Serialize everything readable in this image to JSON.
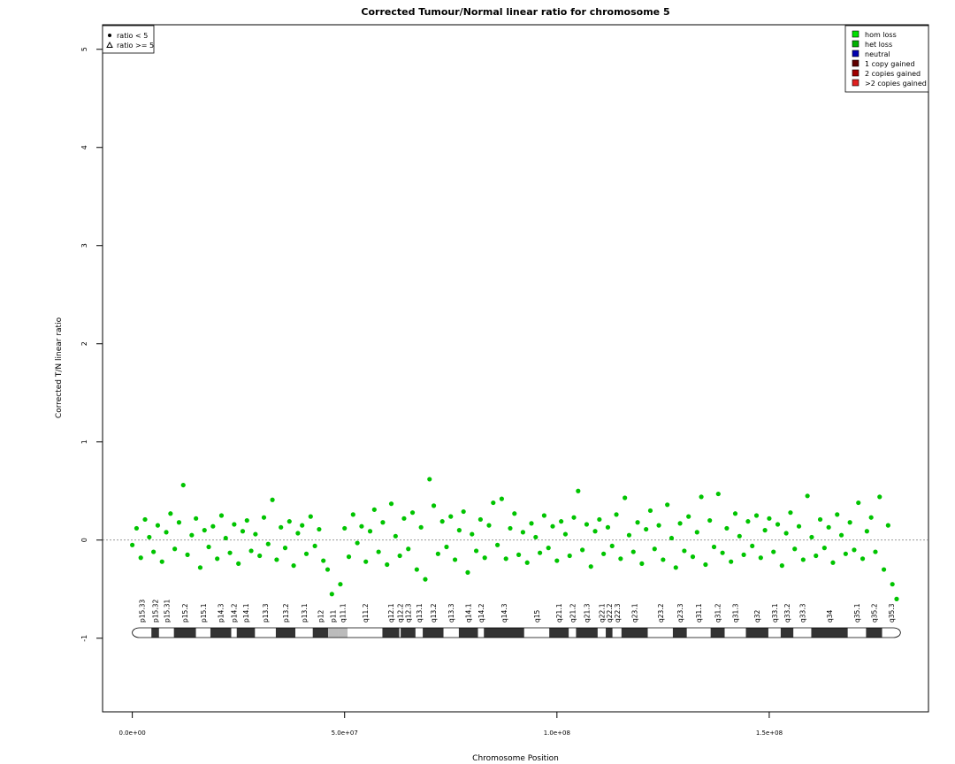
{
  "chart_data": {
    "type": "scatter",
    "title": "Corrected Tumour/Normal linear ratio for chromosome  5",
    "xlabel": "Chromosome Position",
    "ylabel": "Corrected T/N linear ratio",
    "color": "#00c400",
    "xlim": [
      -7000000,
      187500000
    ],
    "xticks": [
      {
        "value": 0,
        "label": "0.0e+00"
      },
      {
        "value": 50000000,
        "label": "5.0e+07"
      },
      {
        "value": 100000000,
        "label": "1.0e+08"
      },
      {
        "value": 150000000,
        "label": "1.5e+08"
      }
    ],
    "ylim": [
      -1.75,
      5.25
    ],
    "yticks": [
      -1,
      0,
      1,
      2,
      3,
      4,
      5
    ],
    "reference_line": 0,
    "shape_legend": [
      {
        "name": "ratio < 5",
        "shape": "circle"
      },
      {
        "name": "ratio >= 5",
        "shape": "triangle"
      }
    ],
    "legend": [
      {
        "name": "hom loss",
        "color": "#00e000"
      },
      {
        "name": "het loss",
        "color": "#00b000"
      },
      {
        "name": "neutral",
        "color": "#0000b0"
      },
      {
        "name": "1 copy gained",
        "color": "#600000"
      },
      {
        "name": "2 copies gained",
        "color": "#a00000"
      },
      {
        "name": ">2 copies gained",
        "color": "#e02020"
      }
    ],
    "x": [
      0,
      1000000,
      2000000,
      3000000,
      4000000,
      5000000,
      6000000,
      7000000,
      8000000,
      9000000,
      10000000,
      11000000,
      12000000,
      13000000,
      14000000,
      15000000,
      16000000,
      17000000,
      18000000,
      19000000,
      20000000,
      21000000,
      22000000,
      23000000,
      24000000,
      25000000,
      26000000,
      27000000,
      28000000,
      29000000,
      30000000,
      31000000,
      32000000,
      33000000,
      34000000,
      35000000,
      36000000,
      37000000,
      38000000,
      39000000,
      40000000,
      41000000,
      42000000,
      43000000,
      44000000,
      45000000,
      46000000,
      47000000,
      49000000,
      50000000,
      51000000,
      52000000,
      53000000,
      54000000,
      55000000,
      56000000,
      57000000,
      58000000,
      59000000,
      60000000,
      61000000,
      62000000,
      63000000,
      64000000,
      65000000,
      66000000,
      67000000,
      68000000,
      69000000,
      70000000,
      71000000,
      72000000,
      73000000,
      74000000,
      75000000,
      76000000,
      77000000,
      78000000,
      79000000,
      80000000,
      81000000,
      82000000,
      83000000,
      84000000,
      85000000,
      86000000,
      87000000,
      88000000,
      89000000,
      90000000,
      91000000,
      92000000,
      93000000,
      94000000,
      95000000,
      96000000,
      97000000,
      98000000,
      99000000,
      100000000,
      101000000,
      102000000,
      103000000,
      104000000,
      105000000,
      106000000,
      107000000,
      108000000,
      109000000,
      110000000,
      111000000,
      112000000,
      113000000,
      114000000,
      115000000,
      116000000,
      117000000,
      118000000,
      119000000,
      120000000,
      121000000,
      122000000,
      123000000,
      124000000,
      125000000,
      126000000,
      127000000,
      128000000,
      129000000,
      130000000,
      131000000,
      132000000,
      133000000,
      134000000,
      135000000,
      136000000,
      137000000,
      138000000,
      139000000,
      140000000,
      141000000,
      142000000,
      143000000,
      144000000,
      145000000,
      146000000,
      147000000,
      148000000,
      149000000,
      150000000,
      151000000,
      152000000,
      153000000,
      154000000,
      155000000,
      156000000,
      157000000,
      158000000,
      159000000,
      160000000,
      161000000,
      162000000,
      163000000,
      164000000,
      165000000,
      166000000,
      167000000,
      168000000,
      169000000,
      170000000,
      171000000,
      172000000,
      173000000,
      174000000,
      175000000,
      176000000,
      177000000,
      178000000,
      179000000,
      180000000
    ],
    "values": [
      -0.05,
      0.12,
      -0.18,
      0.21,
      0.03,
      -0.12,
      0.15,
      -0.22,
      0.08,
      0.27,
      -0.09,
      0.18,
      0.56,
      -0.15,
      0.05,
      0.22,
      -0.28,
      0.1,
      -0.07,
      0.14,
      -0.19,
      0.25,
      0.02,
      -0.13,
      0.16,
      -0.24,
      0.09,
      0.2,
      -0.11,
      0.06,
      -0.16,
      0.23,
      -0.04,
      0.41,
      -0.2,
      0.13,
      -0.08,
      0.19,
      -0.26,
      0.07,
      0.15,
      -0.14,
      0.24,
      -0.06,
      0.11,
      -0.21,
      -0.3,
      -0.55,
      -0.45,
      0.12,
      -0.17,
      0.26,
      -0.03,
      0.14,
      -0.22,
      0.09,
      0.31,
      -0.12,
      0.18,
      -0.25,
      0.37,
      0.04,
      -0.16,
      0.22,
      -0.09,
      0.28,
      -0.3,
      0.13,
      -0.4,
      0.62,
      0.35,
      -0.14,
      0.19,
      -0.07,
      0.24,
      -0.2,
      0.1,
      0.29,
      -0.33,
      0.06,
      -0.11,
      0.21,
      -0.18,
      0.15,
      0.38,
      -0.05,
      0.42,
      -0.19,
      0.12,
      0.27,
      -0.15,
      0.08,
      -0.23,
      0.17,
      0.03,
      -0.13,
      0.25,
      -0.08,
      0.14,
      -0.21,
      0.19,
      0.06,
      -0.16,
      0.23,
      0.5,
      -0.1,
      0.16,
      -0.27,
      0.09,
      0.21,
      -0.14,
      0.13,
      -0.06,
      0.26,
      -0.19,
      0.43,
      0.05,
      -0.12,
      0.18,
      -0.24,
      0.11,
      0.3,
      -0.09,
      0.15,
      -0.2,
      0.36,
      0.02,
      -0.28,
      0.17,
      -0.11,
      0.24,
      -0.17,
      0.08,
      0.44,
      -0.25,
      0.2,
      -0.07,
      0.47,
      -0.13,
      0.12,
      -0.22,
      0.27,
      0.04,
      -0.15,
      0.19,
      -0.06,
      0.25,
      -0.18,
      0.1,
      0.22,
      -0.12,
      0.16,
      -0.26,
      0.07,
      0.28,
      -0.09,
      0.14,
      -0.2,
      0.45,
      0.03,
      -0.16,
      0.21,
      -0.08,
      0.13,
      -0.23,
      0.26,
      0.05,
      -0.14,
      0.18,
      -0.1,
      0.38,
      -0.19,
      0.09,
      0.23,
      -0.12,
      0.44,
      -0.3,
      0.15,
      -0.45,
      -0.6
    ],
    "bands": [
      {
        "name": "p15.33",
        "start": 0,
        "end": 4500000,
        "color": "#ffffff"
      },
      {
        "name": "p15.32",
        "start": 4500000,
        "end": 6300000,
        "color": "#333333"
      },
      {
        "name": "p15.31",
        "start": 6300000,
        "end": 9800000,
        "color": "#ffffff"
      },
      {
        "name": "p15.2",
        "start": 9800000,
        "end": 15000000,
        "color": "#333333"
      },
      {
        "name": "p15.1",
        "start": 15000000,
        "end": 18400000,
        "color": "#ffffff"
      },
      {
        "name": "p14.3",
        "start": 18400000,
        "end": 23300000,
        "color": "#333333"
      },
      {
        "name": "p14.2",
        "start": 23300000,
        "end": 24600000,
        "color": "#ffffff"
      },
      {
        "name": "p14.1",
        "start": 24600000,
        "end": 28900000,
        "color": "#333333"
      },
      {
        "name": "p13.3",
        "start": 28900000,
        "end": 33800000,
        "color": "#ffffff"
      },
      {
        "name": "p13.2",
        "start": 33800000,
        "end": 38400000,
        "color": "#333333"
      },
      {
        "name": "p13.1",
        "start": 38400000,
        "end": 42500000,
        "color": "#ffffff"
      },
      {
        "name": "p12",
        "start": 42500000,
        "end": 46100000,
        "color": "#333333"
      },
      {
        "name": "p11",
        "start": 46100000,
        "end": 48400000,
        "color": "#bbbbbb"
      },
      {
        "name": "q11.1",
        "start": 48400000,
        "end": 50700000,
        "color": "#bbbbbb"
      },
      {
        "name": "q11.2",
        "start": 50700000,
        "end": 58900000,
        "color": "#ffffff"
      },
      {
        "name": "q12.1",
        "start": 58900000,
        "end": 62900000,
        "color": "#333333"
      },
      {
        "name": "q12.2",
        "start": 62900000,
        "end": 63200000,
        "color": "#ffffff"
      },
      {
        "name": "q12.3",
        "start": 63200000,
        "end": 66700000,
        "color": "#333333"
      },
      {
        "name": "q13.1",
        "start": 66700000,
        "end": 68400000,
        "color": "#ffffff"
      },
      {
        "name": "q13.2",
        "start": 68400000,
        "end": 73300000,
        "color": "#333333"
      },
      {
        "name": "q13.3",
        "start": 73300000,
        "end": 76900000,
        "color": "#ffffff"
      },
      {
        "name": "q14.1",
        "start": 76900000,
        "end": 81400000,
        "color": "#333333"
      },
      {
        "name": "q14.2",
        "start": 81400000,
        "end": 82800000,
        "color": "#ffffff"
      },
      {
        "name": "q14.3",
        "start": 82800000,
        "end": 92300000,
        "color": "#333333"
      },
      {
        "name": "q15",
        "start": 92300000,
        "end": 98200000,
        "color": "#ffffff"
      },
      {
        "name": "q21.1",
        "start": 98200000,
        "end": 102800000,
        "color": "#333333"
      },
      {
        "name": "q21.2",
        "start": 102800000,
        "end": 104500000,
        "color": "#ffffff"
      },
      {
        "name": "q21.3",
        "start": 104500000,
        "end": 109600000,
        "color": "#333333"
      },
      {
        "name": "q22.1",
        "start": 109600000,
        "end": 111500000,
        "color": "#ffffff"
      },
      {
        "name": "q22.2",
        "start": 111500000,
        "end": 113100000,
        "color": "#333333"
      },
      {
        "name": "q22.3",
        "start": 113100000,
        "end": 115200000,
        "color": "#ffffff"
      },
      {
        "name": "q23.1",
        "start": 115200000,
        "end": 121400000,
        "color": "#333333"
      },
      {
        "name": "q23.2",
        "start": 121400000,
        "end": 127300000,
        "color": "#ffffff"
      },
      {
        "name": "q23.3",
        "start": 127300000,
        "end": 130600000,
        "color": "#333333"
      },
      {
        "name": "q31.1",
        "start": 130600000,
        "end": 136200000,
        "color": "#ffffff"
      },
      {
        "name": "q31.2",
        "start": 136200000,
        "end": 139500000,
        "color": "#333333"
      },
      {
        "name": "q31.3",
        "start": 139500000,
        "end": 144500000,
        "color": "#ffffff"
      },
      {
        "name": "q32",
        "start": 144500000,
        "end": 149800000,
        "color": "#333333"
      },
      {
        "name": "q33.1",
        "start": 149800000,
        "end": 152700000,
        "color": "#ffffff"
      },
      {
        "name": "q33.2",
        "start": 152700000,
        "end": 155700000,
        "color": "#333333"
      },
      {
        "name": "q33.3",
        "start": 155700000,
        "end": 159900000,
        "color": "#ffffff"
      },
      {
        "name": "q34",
        "start": 159900000,
        "end": 168500000,
        "color": "#333333"
      },
      {
        "name": "q35.1",
        "start": 168500000,
        "end": 172800000,
        "color": "#ffffff"
      },
      {
        "name": "q35.2",
        "start": 172800000,
        "end": 176600000,
        "color": "#333333"
      },
      {
        "name": "q35.3",
        "start": 176600000,
        "end": 180900000,
        "color": "#ffffff"
      }
    ]
  }
}
